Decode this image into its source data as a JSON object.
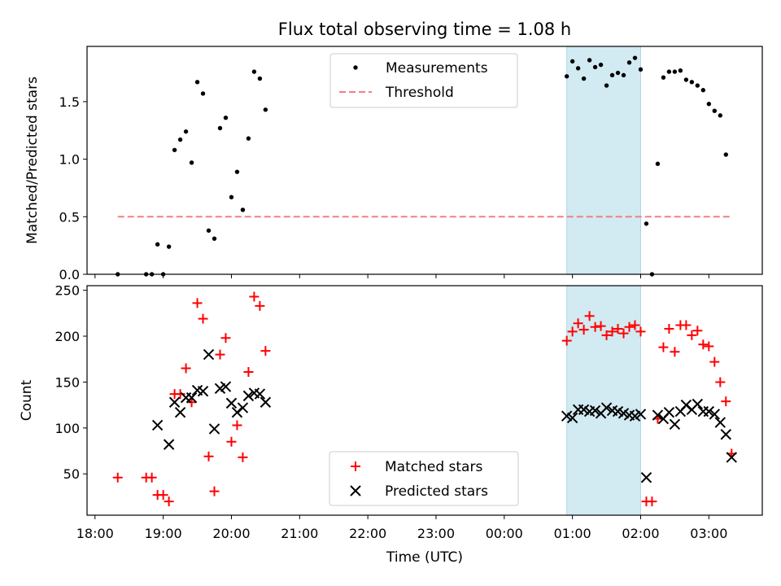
{
  "chart_data": [
    {
      "type": "scatter",
      "title": "Flux total observing time = 1.08 h",
      "xlabel": "",
      "ylabel": "Matched/Predicted stars",
      "xlim": [
        "17:53",
        "03:47"
      ],
      "ylim": [
        0,
        1.98
      ],
      "yticks": [
        0.0,
        0.5,
        1.0,
        1.5
      ],
      "ytick_labels": [
        "0.0",
        "0.5",
        "1.0",
        "1.5"
      ],
      "grid": false,
      "legend_position": "top-center",
      "legend": [
        "Measurements",
        "Threshold"
      ],
      "shaded_interval": {
        "start": "00:55",
        "end": "02:00",
        "color": "#add8e6"
      },
      "threshold": {
        "value": 0.5,
        "start": "18:20",
        "end": "03:20",
        "color": "#f08080"
      },
      "series": [
        {
          "name": "Measurements",
          "marker": "dot",
          "color": "#000000",
          "points": [
            [
              "18:20",
              0.0
            ],
            [
              "18:45",
              0.0
            ],
            [
              "18:50",
              0.0
            ],
            [
              "18:55",
              0.26
            ],
            [
              "19:00",
              0.0
            ],
            [
              "19:05",
              0.24
            ],
            [
              "19:10",
              1.08
            ],
            [
              "19:15",
              1.17
            ],
            [
              "19:20",
              1.24
            ],
            [
              "19:25",
              0.97
            ],
            [
              "19:30",
              1.67
            ],
            [
              "19:35",
              1.57
            ],
            [
              "19:40",
              0.38
            ],
            [
              "19:45",
              0.31
            ],
            [
              "19:50",
              1.27
            ],
            [
              "19:55",
              1.36
            ],
            [
              "20:00",
              0.67
            ],
            [
              "20:05",
              0.89
            ],
            [
              "20:10",
              0.56
            ],
            [
              "20:15",
              1.18
            ],
            [
              "20:20",
              1.76
            ],
            [
              "20:25",
              1.7
            ],
            [
              "20:30",
              1.43
            ],
            [
              "00:55",
              1.72
            ],
            [
              "01:00",
              1.85
            ],
            [
              "01:05",
              1.79
            ],
            [
              "01:10",
              1.7
            ],
            [
              "01:15",
              1.86
            ],
            [
              "01:20",
              1.8
            ],
            [
              "01:25",
              1.82
            ],
            [
              "01:30",
              1.64
            ],
            [
              "01:35",
              1.73
            ],
            [
              "01:40",
              1.75
            ],
            [
              "01:45",
              1.73
            ],
            [
              "01:50",
              1.84
            ],
            [
              "01:55",
              1.88
            ],
            [
              "02:00",
              1.78
            ],
            [
              "02:05",
              0.44
            ],
            [
              "02:10",
              0.0
            ],
            [
              "02:15",
              0.96
            ],
            [
              "02:20",
              1.71
            ],
            [
              "02:25",
              1.76
            ],
            [
              "02:30",
              1.76
            ],
            [
              "02:35",
              1.77
            ],
            [
              "02:40",
              1.69
            ],
            [
              "02:45",
              1.67
            ],
            [
              "02:50",
              1.64
            ],
            [
              "02:55",
              1.6
            ],
            [
              "03:00",
              1.48
            ],
            [
              "03:05",
              1.42
            ],
            [
              "03:10",
              1.38
            ],
            [
              "03:15",
              1.04
            ]
          ]
        }
      ]
    },
    {
      "type": "scatter",
      "title": "",
      "xlabel": "Time (UTC)",
      "ylabel": "Count",
      "xlim": [
        "17:53",
        "03:47"
      ],
      "ylim": [
        5,
        255
      ],
      "yticks": [
        50,
        100,
        150,
        200,
        250
      ],
      "ytick_labels": [
        "50",
        "100",
        "150",
        "200",
        "250"
      ],
      "xticks": [
        "18:00",
        "19:00",
        "20:00",
        "21:00",
        "22:00",
        "23:00",
        "00:00",
        "01:00",
        "02:00",
        "03:00"
      ],
      "grid": false,
      "legend_position": "bottom-center",
      "legend": [
        "Matched stars",
        "Predicted stars"
      ],
      "shaded_interval": {
        "start": "00:55",
        "end": "02:00",
        "color": "#add8e6"
      },
      "series": [
        {
          "name": "Matched stars",
          "marker": "plus",
          "color": "#ff0000",
          "points": [
            [
              "18:20",
              46
            ],
            [
              "18:45",
              46
            ],
            [
              "18:50",
              46
            ],
            [
              "18:55",
              27
            ],
            [
              "19:00",
              27
            ],
            [
              "19:05",
              20
            ],
            [
              "19:10",
              137
            ],
            [
              "19:15",
              137
            ],
            [
              "19:20",
              165
            ],
            [
              "19:25",
              128
            ],
            [
              "19:30",
              236
            ],
            [
              "19:35",
              219
            ],
            [
              "19:40",
              69
            ],
            [
              "19:45",
              31
            ],
            [
              "19:50",
              180
            ],
            [
              "19:55",
              198
            ],
            [
              "20:00",
              85
            ],
            [
              "20:05",
              103
            ],
            [
              "20:10",
              68
            ],
            [
              "20:15",
              161
            ],
            [
              "20:20",
              243
            ],
            [
              "20:25",
              233
            ],
            [
              "20:30",
              184
            ],
            [
              "00:55",
              195
            ],
            [
              "01:00",
              205
            ],
            [
              "01:05",
              214
            ],
            [
              "01:10",
              207
            ],
            [
              "01:15",
              222
            ],
            [
              "01:20",
              210
            ],
            [
              "01:25",
              211
            ],
            [
              "01:30",
              201
            ],
            [
              "01:35",
              205
            ],
            [
              "01:40",
              208
            ],
            [
              "01:45",
              203
            ],
            [
              "01:50",
              210
            ],
            [
              "01:55",
              212
            ],
            [
              "02:00",
              205
            ],
            [
              "02:05",
              20
            ],
            [
              "02:10",
              20
            ],
            [
              "02:15",
              110
            ],
            [
              "02:20",
              188
            ],
            [
              "02:25",
              208
            ],
            [
              "02:30",
              183
            ],
            [
              "02:35",
              212
            ],
            [
              "02:40",
              212
            ],
            [
              "02:45",
              201
            ],
            [
              "02:50",
              206
            ],
            [
              "02:55",
              191
            ],
            [
              "03:00",
              189
            ],
            [
              "03:05",
              172
            ],
            [
              "03:10",
              150
            ],
            [
              "03:15",
              129
            ],
            [
              "03:20",
              72
            ]
          ]
        },
        {
          "name": "Predicted stars",
          "marker": "x",
          "color": "#000000",
          "points": [
            [
              "18:55",
              103
            ],
            [
              "19:05",
              82
            ],
            [
              "19:10",
              128
            ],
            [
              "19:15",
              117
            ],
            [
              "19:20",
              133
            ],
            [
              "19:25",
              133
            ],
            [
              "19:30",
              141
            ],
            [
              "19:35",
              140
            ],
            [
              "19:40",
              180
            ],
            [
              "19:45",
              99
            ],
            [
              "19:50",
              143
            ],
            [
              "19:55",
              145
            ],
            [
              "20:00",
              127
            ],
            [
              "20:05",
              117
            ],
            [
              "20:10",
              122
            ],
            [
              "20:15",
              135
            ],
            [
              "20:20",
              138
            ],
            [
              "20:25",
              137
            ],
            [
              "20:30",
              128
            ],
            [
              "00:55",
              113
            ],
            [
              "01:00",
              111
            ],
            [
              "01:05",
              120
            ],
            [
              "01:10",
              120
            ],
            [
              "01:15",
              118
            ],
            [
              "01:20",
              119
            ],
            [
              "01:25",
              116
            ],
            [
              "01:30",
              122
            ],
            [
              "01:35",
              119
            ],
            [
              "01:40",
              118
            ],
            [
              "01:45",
              116
            ],
            [
              "01:50",
              114
            ],
            [
              "01:55",
              113
            ],
            [
              "02:00",
              115
            ],
            [
              "02:05",
              46
            ],
            [
              "02:15",
              114
            ],
            [
              "02:20",
              110
            ],
            [
              "02:25",
              117
            ],
            [
              "02:30",
              104
            ],
            [
              "02:35",
              118
            ],
            [
              "02:40",
              125
            ],
            [
              "02:45",
              120
            ],
            [
              "02:50",
              126
            ],
            [
              "02:55",
              118
            ],
            [
              "03:00",
              118
            ],
            [
              "03:05",
              115
            ],
            [
              "03:10",
              106
            ],
            [
              "03:15",
              93
            ],
            [
              "03:20",
              68
            ]
          ]
        }
      ]
    }
  ]
}
